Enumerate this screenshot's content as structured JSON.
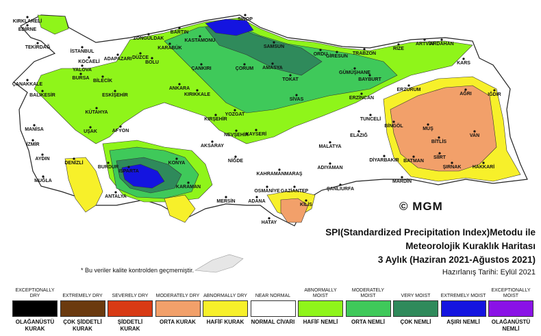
{
  "copyright": "© MGM",
  "title": {
    "line1": "SPI(Standardized Precipitation Index)Metodu ile",
    "line2": "Meteorolojik Kuraklık Haritası",
    "line3": "3 Aylık (Haziran 2021-Ağustos 2021)",
    "prepared": "Hazırlanış Tarihi: Eylül 2021"
  },
  "note": "* Bu veriler kalite kontrolden geçmemiştir.",
  "legend": [
    {
      "en": "EXCEPTIONALLY DRY",
      "tr": "OLAĞANÜSTÜ KURAK",
      "color": "#000000"
    },
    {
      "en": "EXTREMELY DRY",
      "tr": "ÇOK ŞİDDETLİ KURAK",
      "color": "#6b3a0f"
    },
    {
      "en": "SEVERELY DRY",
      "tr": "ŞİDDETLİ KURAK",
      "color": "#d83a14"
    },
    {
      "en": "MODERATELY DRY",
      "tr": "ORTA KURAK",
      "color": "#f2a06a"
    },
    {
      "en": "ABNORMALLY DRY",
      "tr": "HAFİF KURAK",
      "color": "#f7f02a"
    },
    {
      "en": "NEAR NORMAL",
      "tr": "NORMAL CİVARI",
      "color": "#ffffff"
    },
    {
      "en": "ABNORMALLY MOIST",
      "tr": "HAFİF NEMLİ",
      "color": "#8ff51a"
    },
    {
      "en": "MODERATELY MOIST",
      "tr": "ORTA NEMLİ",
      "color": "#3fc95a"
    },
    {
      "en": "VERY MOIST",
      "tr": "ÇOK NEMLİ",
      "color": "#2f8a5b"
    },
    {
      "en": "EXTREMELY MOIST",
      "tr": "AŞIRI NEMLİ",
      "color": "#1414e0"
    },
    {
      "en": "EXCEPTIONALLY MOIST",
      "tr": "OLAĞANÜSTÜ NEMLİ",
      "color": "#8a12e6"
    }
  ],
  "cities": [
    {
      "name": "SİNOP"
    },
    {
      "name": "KIRKLARELİ"
    },
    {
      "name": "EDİRNE"
    },
    {
      "name": "BARTIN"
    },
    {
      "name": "ZONGULDAK"
    },
    {
      "name": "KASTAMONU"
    },
    {
      "name": "KARABÜK"
    },
    {
      "name": "SAMSUN"
    },
    {
      "name": "TEKİRDAĞ"
    },
    {
      "name": "İSTANBUL"
    },
    {
      "name": "ORDU"
    },
    {
      "name": "GİRESUN"
    },
    {
      "name": "TRABZON"
    },
    {
      "name": "RİZE"
    },
    {
      "name": "ARTVİN"
    },
    {
      "name": "ARDAHAN"
    },
    {
      "name": "ADAPAZARI"
    },
    {
      "name": "DÜZCE"
    },
    {
      "name": "BOLU"
    },
    {
      "name": "KOCAELİ"
    },
    {
      "name": "YALOVA"
    },
    {
      "name": "BURSA"
    },
    {
      "name": "BİLECİK"
    },
    {
      "name": "ÇANKIRI"
    },
    {
      "name": "ÇORUM"
    },
    {
      "name": "AMASYA"
    },
    {
      "name": "TOKAT"
    },
    {
      "name": "GÜMÜŞHANE"
    },
    {
      "name": "BAYBURT"
    },
    {
      "name": "KARS"
    },
    {
      "name": "ÇANAKKALE"
    },
    {
      "name": "BALIKESİR"
    },
    {
      "name": "ESKİŞEHİR"
    },
    {
      "name": "ANKARA"
    },
    {
      "name": "KIRIKKALE"
    },
    {
      "name": "YOZGAT"
    },
    {
      "name": "SİVAS"
    },
    {
      "name": "ERZİNCAN"
    },
    {
      "name": "ERZURUM"
    },
    {
      "name": "AĞRI"
    },
    {
      "name": "IĞDIR"
    },
    {
      "name": "KÜTAHYA"
    },
    {
      "name": "MANİSA"
    },
    {
      "name": "UŞAK"
    },
    {
      "name": "AFYON"
    },
    {
      "name": "KIRŞEHİR"
    },
    {
      "name": "NEVŞEHİR"
    },
    {
      "name": "KAYSERİ"
    },
    {
      "name": "TUNCELİ"
    },
    {
      "name": "BİNGÖL"
    },
    {
      "name": "MUŞ"
    },
    {
      "name": "BİTLİS"
    },
    {
      "name": "VAN"
    },
    {
      "name": "İZMİR"
    },
    {
      "name": "AKSARAY"
    },
    {
      "name": "ELAZIĞ"
    },
    {
      "name": "MALATYA"
    },
    {
      "name": "AYDIN"
    },
    {
      "name": "DENİZLİ"
    },
    {
      "name": "BURDUR"
    },
    {
      "name": "KONYA"
    },
    {
      "name": "NİĞDE"
    },
    {
      "name": "ISPARTA"
    },
    {
      "name": "DİYARBAKIR"
    },
    {
      "name": "BATMAN"
    },
    {
      "name": "SİİRT"
    },
    {
      "name": "ŞIRNAK"
    },
    {
      "name": "HAKKARİ"
    },
    {
      "name": "KAHRAMANMARAŞ"
    },
    {
      "name": "ADIYAMAN"
    },
    {
      "name": "MUĞLA"
    },
    {
      "name": "KARAMAN"
    },
    {
      "name": "ŞANLIURFA"
    },
    {
      "name": "MARDİN"
    },
    {
      "name": "ANTALYA"
    },
    {
      "name": "MERSİN"
    },
    {
      "name": "ADANA"
    },
    {
      "name": "OSMANİYE"
    },
    {
      "name": "GAZİANTEP"
    },
    {
      "name": "KİLİS"
    },
    {
      "name": "HATAY"
    }
  ]
}
